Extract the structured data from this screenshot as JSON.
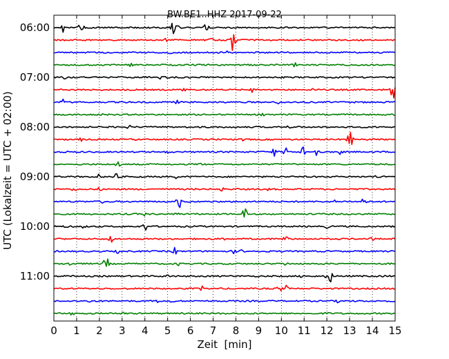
{
  "chart_data": {
    "type": "line",
    "title": "BW.BE1..HHZ 2017-09-22",
    "xlabel": "Zeit  [min]",
    "ylabel": "UTC (Lokalzeit = UTC + 02:00)",
    "xlim": [
      0,
      15
    ],
    "x_ticks": [
      0,
      1,
      2,
      3,
      4,
      5,
      6,
      7,
      8,
      9,
      10,
      11,
      12,
      13,
      14,
      15
    ],
    "x_tick_labels": [
      "0",
      "1",
      "2",
      "3",
      "4",
      "5",
      "6",
      "7",
      "8",
      "9",
      "10",
      "11",
      "12",
      "13",
      "14",
      "15"
    ],
    "grid": "vertical dotted",
    "line_colors": [
      "#000000",
      "#ff0000",
      "#0000ff",
      "#008000"
    ],
    "y_tick_labels": [
      {
        "label": "06:00",
        "trace_index": 0
      },
      {
        "label": "07:00",
        "trace_index": 4
      },
      {
        "label": "08:00",
        "trace_index": 8
      },
      {
        "label": "09:00",
        "trace_index": 12
      },
      {
        "label": "10:00",
        "trace_index": 16
      },
      {
        "label": "11:00",
        "trace_index": 20
      }
    ],
    "series": [
      {
        "start": "06:00",
        "events": [
          [
            0.4,
            7
          ],
          [
            1.2,
            11
          ],
          [
            2.5,
            4
          ],
          [
            5.2,
            12
          ],
          [
            5.4,
            9
          ],
          [
            6.7,
            9
          ]
        ]
      },
      {
        "start": "06:15",
        "events": [
          [
            4.9,
            3
          ],
          [
            6.9,
            3
          ],
          [
            7.9,
            22
          ]
        ]
      },
      {
        "start": "06:30",
        "events": [
          [
            1.3,
            3
          ],
          [
            5.1,
            3
          ],
          [
            7.6,
            3
          ]
        ]
      },
      {
        "start": "06:45",
        "events": [
          [
            3.4,
            3
          ],
          [
            10.6,
            4
          ]
        ]
      },
      {
        "start": "07:00",
        "events": [
          [
            0.5,
            3
          ],
          [
            4.7,
            3
          ]
        ]
      },
      {
        "start": "07:15",
        "events": [
          [
            5.7,
            5
          ],
          [
            8.7,
            4
          ],
          [
            11.4,
            3
          ],
          [
            14.9,
            16
          ]
        ]
      },
      {
        "start": "07:30",
        "events": [
          [
            0.4,
            5
          ],
          [
            3.1,
            3
          ],
          [
            5.4,
            3
          ],
          [
            9.9,
            3
          ]
        ]
      },
      {
        "start": "07:45",
        "events": [
          [
            2.1,
            3
          ],
          [
            9.2,
            4
          ]
        ]
      },
      {
        "start": "08:00",
        "events": [
          [
            3.3,
            3
          ],
          [
            7.0,
            3
          ],
          [
            10.3,
            3
          ]
        ]
      },
      {
        "start": "08:15",
        "events": [
          [
            1.2,
            3
          ],
          [
            3.5,
            3
          ],
          [
            8.3,
            3
          ],
          [
            13.0,
            18
          ]
        ]
      },
      {
        "start": "08:30",
        "events": [
          [
            5.0,
            3
          ],
          [
            9.7,
            8
          ],
          [
            10.2,
            7
          ],
          [
            11.0,
            13
          ],
          [
            11.6,
            9
          ],
          [
            12.6,
            4
          ]
        ]
      },
      {
        "start": "08:45",
        "events": [
          [
            2.8,
            7
          ],
          [
            6.4,
            3
          ]
        ]
      },
      {
        "start": "09:00",
        "events": [
          [
            1.9,
            5
          ],
          [
            2.7,
            7
          ],
          [
            5.4,
            3
          ],
          [
            14.2,
            4
          ]
        ]
      },
      {
        "start": "09:15",
        "events": [
          [
            0.9,
            4
          ],
          [
            2.0,
            3
          ],
          [
            7.4,
            4
          ],
          [
            9.4,
            3
          ]
        ]
      },
      {
        "start": "09:30",
        "events": [
          [
            2.1,
            3
          ],
          [
            5.5,
            11
          ],
          [
            12.4,
            3
          ],
          [
            13.6,
            10
          ]
        ]
      },
      {
        "start": "09:45",
        "events": [
          [
            4.0,
            3
          ],
          [
            5.4,
            3
          ],
          [
            8.4,
            10
          ]
        ]
      },
      {
        "start": "10:00",
        "events": [
          [
            0.5,
            3
          ],
          [
            1.3,
            3
          ],
          [
            4.0,
            7
          ],
          [
            12.0,
            3
          ]
        ]
      },
      {
        "start": "10:15",
        "events": [
          [
            2.5,
            6
          ],
          [
            7.5,
            3
          ],
          [
            10.2,
            11
          ],
          [
            14.0,
            3
          ]
        ]
      },
      {
        "start": "10:30",
        "events": [
          [
            2.8,
            3
          ],
          [
            5.3,
            6
          ],
          [
            7.9,
            4
          ],
          [
            8.2,
            3
          ]
        ]
      },
      {
        "start": "10:45",
        "events": [
          [
            0.7,
            4
          ],
          [
            2.3,
            13
          ],
          [
            5.5,
            3
          ],
          [
            10.2,
            3
          ]
        ]
      },
      {
        "start": "11:00",
        "events": [
          [
            5.0,
            4
          ],
          [
            10.9,
            3
          ],
          [
            12.1,
            18
          ]
        ]
      },
      {
        "start": "11:15",
        "events": [
          [
            6.5,
            4
          ],
          [
            9.9,
            6
          ],
          [
            10.2,
            5
          ]
        ]
      },
      {
        "start": "11:30",
        "events": [
          [
            1.6,
            3
          ],
          [
            4.6,
            3
          ],
          [
            5.2,
            3
          ],
          [
            12.5,
            3
          ]
        ]
      },
      {
        "start": "11:45",
        "events": [
          [
            0.8,
            3
          ],
          [
            3.0,
            3
          ],
          [
            12.0,
            3
          ]
        ]
      }
    ]
  }
}
